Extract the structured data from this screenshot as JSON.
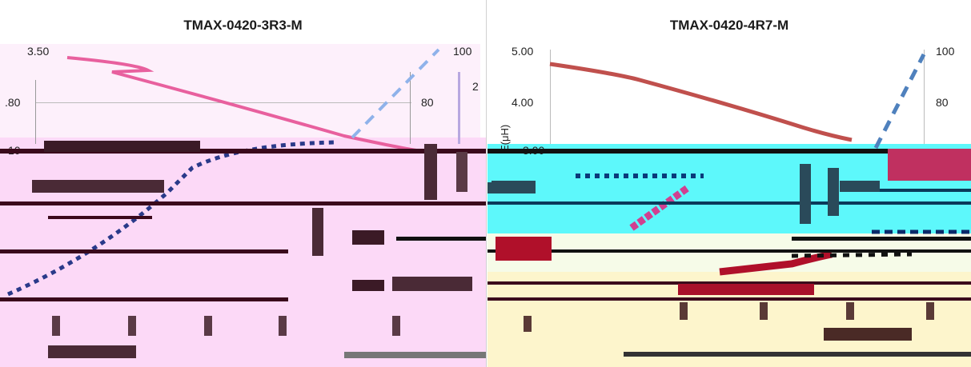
{
  "chart_data": [
    {
      "type": "line",
      "title": "TMAX-0420-3R3-M",
      "left_axis": {
        "ticks": [
          "3.50",
          ".80"
        ],
        "partial_tick": "10"
      },
      "right_axis": {
        "ticks": [
          "100",
          "80"
        ],
        "partial_tick": "2"
      },
      "ylabel_right": "",
      "series": [
        {
          "color": "#e8609e",
          "style": "solid"
        },
        {
          "color": "#8fb2ea",
          "style": "dashed"
        }
      ]
    },
    {
      "type": "line",
      "title": "TMAX-0420-4R7-M",
      "left_axis": {
        "ticks": [
          "5.00",
          "4.00",
          "3.00"
        ]
      },
      "right_axis": {
        "ticks": [
          "100",
          "80"
        ]
      },
      "ylabel_left": "E(μH)",
      "series": [
        {
          "color": "#c0504d",
          "style": "solid"
        },
        {
          "color": "#4f81bd",
          "style": "dashed"
        }
      ]
    }
  ]
}
